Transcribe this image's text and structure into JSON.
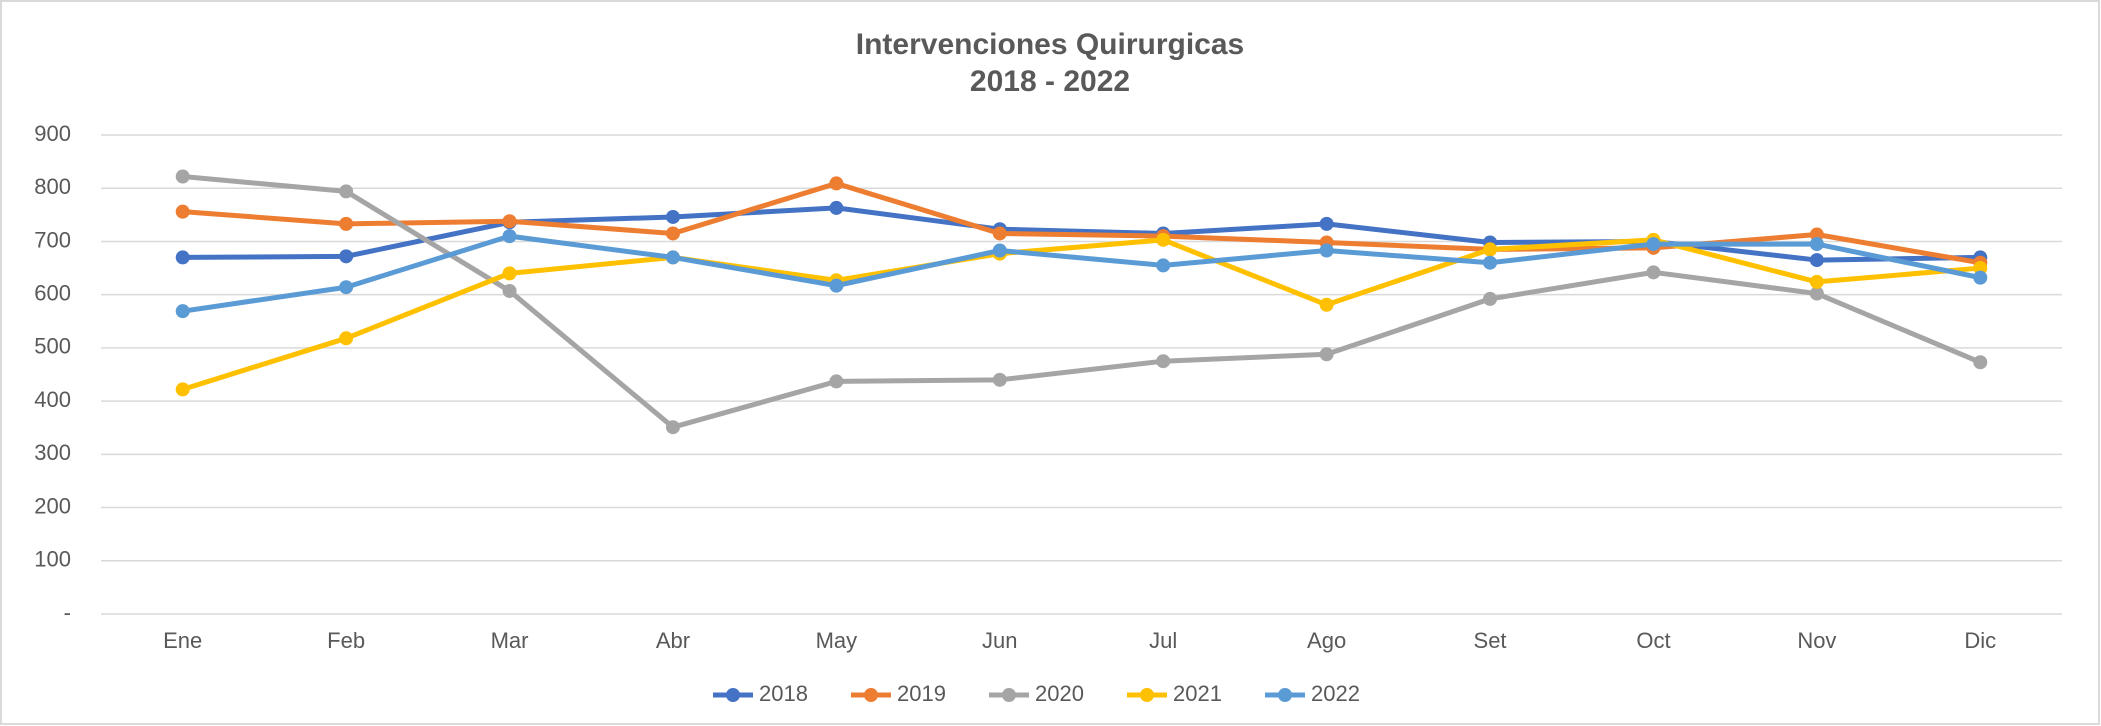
{
  "chart_data": {
    "type": "line",
    "title": "Intervenciones Quirurgicas",
    "subtitle": "2018 - 2022",
    "categories": [
      "Ene",
      "Feb",
      "Mar",
      "Abr",
      "May",
      "Jun",
      "Jul",
      "Ago",
      "Set",
      "Oct",
      "Nov",
      "Dic"
    ],
    "series": [
      {
        "name": "2018",
        "color": "#4472c4",
        "values": [
          670,
          672,
          736,
          746,
          763,
          723,
          715,
          733,
          698,
          700,
          665,
          670
        ]
      },
      {
        "name": "2019",
        "color": "#ed7d31",
        "values": [
          756,
          733,
          738,
          715,
          809,
          715,
          710,
          698,
          685,
          688,
          713,
          660
        ]
      },
      {
        "name": "2020",
        "color": "#a5a5a5",
        "values": [
          822,
          794,
          607,
          351,
          437,
          440,
          475,
          488,
          592,
          642,
          602,
          473
        ]
      },
      {
        "name": "2021",
        "color": "#ffc000",
        "values": [
          422,
          518,
          640,
          670,
          627,
          677,
          703,
          581,
          685,
          703,
          624,
          650
        ]
      },
      {
        "name": "2022",
        "color": "#5b9bd5",
        "values": [
          569,
          614,
          710,
          670,
          617,
          683,
          655,
          683,
          660,
          695,
          695,
          632
        ]
      }
    ],
    "ylim": [
      0,
      900
    ],
    "yticks": [
      {
        "value": 0,
        "label": "-"
      },
      100,
      200,
      300,
      400,
      500,
      600,
      700,
      800,
      900
    ],
    "grid": true,
    "legend": "bottom"
  }
}
